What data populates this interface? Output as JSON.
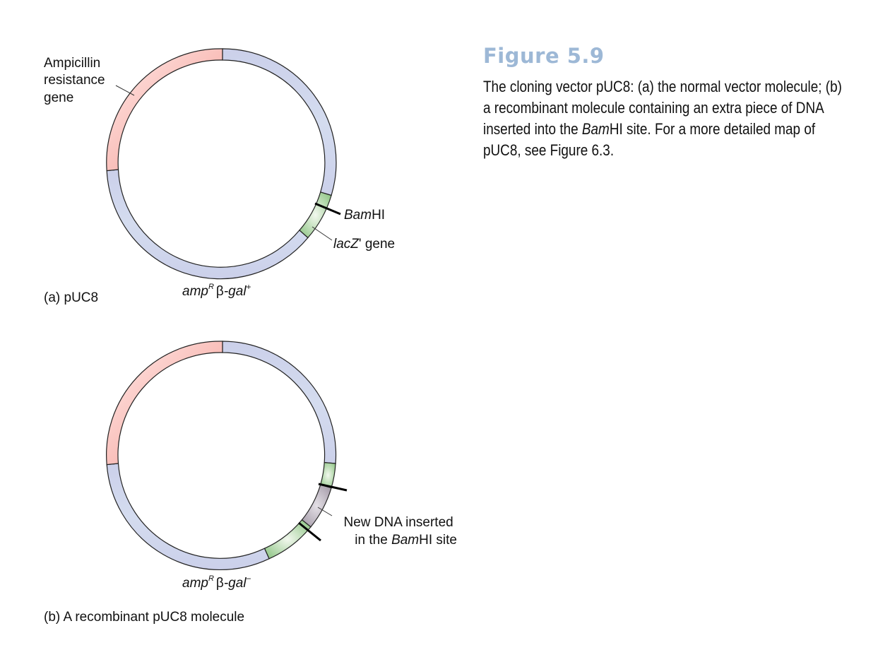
{
  "figure": {
    "title": "Figure 5.9",
    "caption": {
      "part1": "The cloning vector pUC8: (a) the normal vector molecule; (b) a recombinant molecule containing an extra piece of DNA inserted into the ",
      "italic": "Bam",
      "part2": "HI site. For a more detailed map of pUC8, see Figure 6.3."
    }
  },
  "panel_a": {
    "amp_label": [
      "Ampicillin",
      "resistance",
      "gene"
    ],
    "bamhi_italic": "Bam",
    "bamhi_rest": "HI",
    "lacz_italic": "lacZ",
    "lacz_rest": "' gene",
    "genotype": {
      "amp": "amp",
      "sup": "R",
      "beta": "β",
      "gal": "-gal",
      "sign": "+"
    },
    "label": "(a) pUC8"
  },
  "panel_b": {
    "insert_line1": "New DNA inserted",
    "insert_line2_prefix": "in the ",
    "insert_line2_italic": "Bam",
    "insert_line2_rest": "HI site",
    "genotype": {
      "amp": "amp",
      "sup": "R",
      "beta": "β",
      "gal": "-gal",
      "sign": "−"
    },
    "label": "(b) A recombinant pUC8 molecule"
  },
  "colors": {
    "backbone": "#cdd3ea",
    "amp_gene": "#f7a199",
    "lacz": "#a8d3a0",
    "insert": "#b8b0bc"
  }
}
